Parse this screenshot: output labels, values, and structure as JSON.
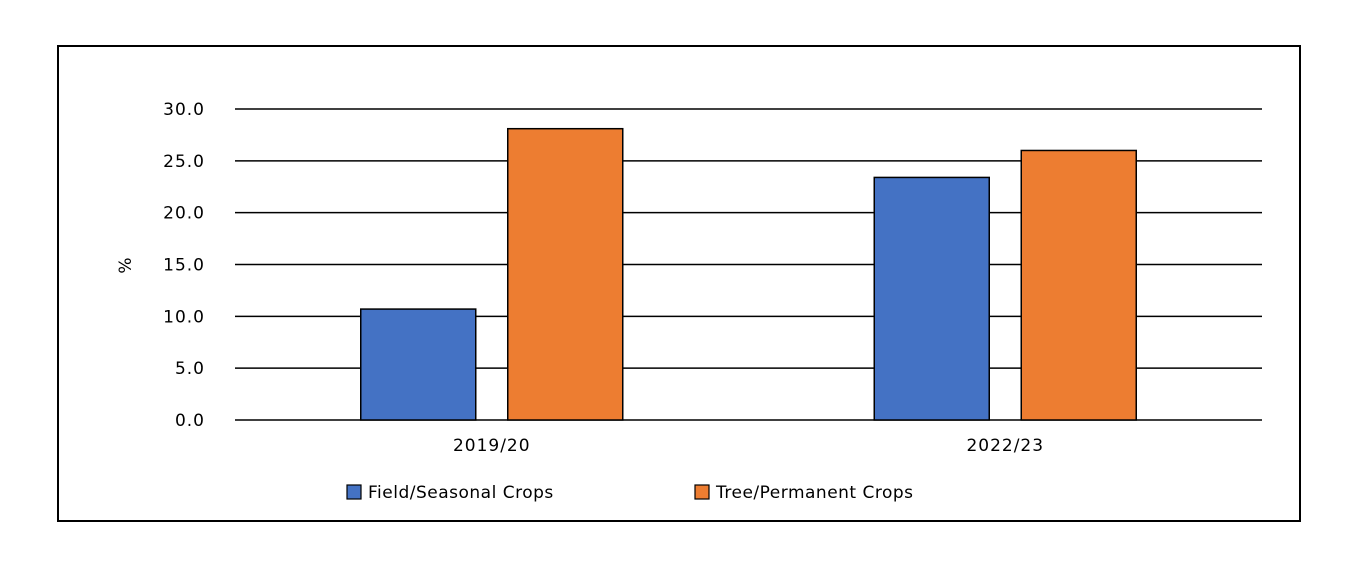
{
  "chart_data": {
    "type": "bar",
    "title": "",
    "xlabel": "",
    "ylabel": "%",
    "categories": [
      "2019/20",
      "2022/23"
    ],
    "series": [
      {
        "name": "Field/Seasonal Crops",
        "color": "#4472C4",
        "values": [
          10.7,
          23.4
        ]
      },
      {
        "name": "Tree/Permanent Crops",
        "color": "#ED7D31",
        "values": [
          28.1,
          26.0
        ]
      }
    ],
    "ylim": [
      0,
      30
    ],
    "yticks": [
      "0.0",
      "5.0",
      "10.0",
      "15.0",
      "20.0",
      "25.0",
      "30.0"
    ],
    "grid": true,
    "legend_position": "bottom"
  }
}
